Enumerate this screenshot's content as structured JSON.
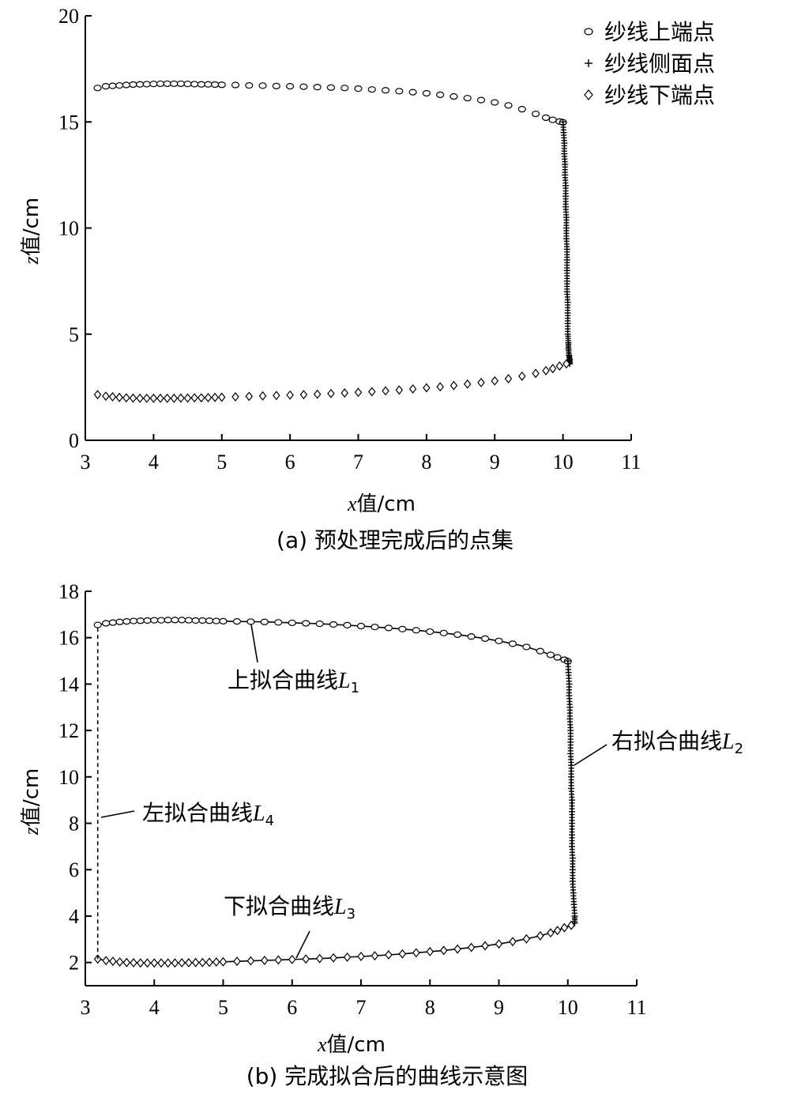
{
  "chart_data": [
    {
      "type": "scatter",
      "caption": "(a) 预处理完成后的点集",
      "xlabel_var": "x",
      "xlabel_rest": "值/cm",
      "ylabel_var": "z",
      "ylabel_rest": "值/cm",
      "xlim": [
        3,
        11
      ],
      "ylim": [
        0,
        20
      ],
      "xticks": [
        3,
        4,
        5,
        6,
        7,
        8,
        9,
        10,
        11
      ],
      "yticks": [
        0,
        5,
        10,
        15,
        20
      ],
      "legend_position": "top-right",
      "legend": [
        "纱线上端点",
        "纱线侧面点",
        "纱线下端点"
      ],
      "series": [
        {
          "name": "纱线上端点",
          "marker": "circle",
          "x": [
            3.18,
            3.3,
            3.4,
            3.5,
            3.6,
            3.7,
            3.8,
            3.9,
            4.0,
            4.1,
            4.2,
            4.3,
            4.4,
            4.5,
            4.6,
            4.7,
            4.8,
            4.9,
            5.0,
            5.2,
            5.4,
            5.6,
            5.8,
            6.0,
            6.2,
            6.4,
            6.6,
            6.8,
            7.0,
            7.2,
            7.4,
            7.6,
            7.8,
            8.0,
            8.2,
            8.4,
            8.6,
            8.8,
            9.0,
            9.2,
            9.4,
            9.6,
            9.75,
            9.85,
            9.95,
            10.0
          ],
          "y": [
            16.6,
            16.68,
            16.7,
            16.72,
            16.74,
            16.76,
            16.77,
            16.78,
            16.79,
            16.8,
            16.8,
            16.8,
            16.8,
            16.79,
            16.78,
            16.77,
            16.77,
            16.76,
            16.75,
            16.74,
            16.72,
            16.71,
            16.69,
            16.68,
            16.66,
            16.64,
            16.62,
            16.6,
            16.57,
            16.53,
            16.49,
            16.45,
            16.4,
            16.35,
            16.28,
            16.2,
            16.12,
            16.03,
            15.92,
            15.78,
            15.6,
            15.38,
            15.2,
            15.1,
            15.02,
            14.98
          ]
        },
        {
          "name": "纱线侧面点",
          "marker": "plus",
          "x": [
            10.0,
            10.01,
            10.02,
            10.02,
            10.03,
            10.03,
            10.04,
            10.04,
            10.04,
            10.05,
            10.05,
            10.05,
            10.06,
            10.06,
            10.06,
            10.06,
            10.06,
            10.07,
            10.07,
            10.07,
            10.07,
            10.08,
            10.08,
            10.09,
            10.1,
            10.1
          ],
          "y": [
            15.0,
            14.5,
            14.0,
            13.5,
            13.0,
            12.5,
            12.0,
            11.5,
            11.0,
            10.5,
            10.0,
            9.5,
            9.0,
            8.5,
            8.0,
            7.5,
            7.0,
            6.5,
            6.0,
            5.5,
            5.0,
            4.6,
            4.3,
            4.0,
            3.8,
            3.6
          ]
        },
        {
          "name": "纱线下端点",
          "marker": "diamond",
          "x": [
            3.18,
            3.3,
            3.4,
            3.5,
            3.6,
            3.7,
            3.8,
            3.9,
            4.0,
            4.1,
            4.2,
            4.3,
            4.4,
            4.5,
            4.6,
            4.7,
            4.8,
            4.9,
            5.0,
            5.2,
            5.4,
            5.6,
            5.8,
            6.0,
            6.2,
            6.4,
            6.6,
            6.8,
            7.0,
            7.2,
            7.4,
            7.6,
            7.8,
            8.0,
            8.2,
            8.4,
            8.6,
            8.8,
            9.0,
            9.2,
            9.4,
            9.6,
            9.75,
            9.85,
            9.95,
            10.05
          ],
          "y": [
            2.15,
            2.08,
            2.05,
            2.02,
            2.0,
            1.99,
            1.98,
            1.98,
            1.98,
            1.98,
            1.98,
            1.98,
            1.99,
            1.99,
            2.0,
            2.0,
            2.01,
            2.02,
            2.03,
            2.05,
            2.07,
            2.09,
            2.11,
            2.13,
            2.15,
            2.17,
            2.2,
            2.23,
            2.26,
            2.29,
            2.33,
            2.37,
            2.42,
            2.47,
            2.52,
            2.58,
            2.65,
            2.72,
            2.8,
            2.9,
            3.02,
            3.15,
            3.28,
            3.38,
            3.5,
            3.6
          ]
        }
      ]
    },
    {
      "type": "line",
      "caption": "(b) 完成拟合后的曲线示意图",
      "xlabel_var": "x",
      "xlabel_rest": "值/cm",
      "ylabel_var": "z",
      "ylabel_rest": "值/cm",
      "xlim": [
        3,
        11
      ],
      "ylim": [
        1,
        18
      ],
      "xticks": [
        3,
        4,
        5,
        6,
        7,
        8,
        9,
        10,
        11
      ],
      "yticks": [
        2,
        4,
        6,
        8,
        10,
        12,
        14,
        16,
        18
      ],
      "annotations": [
        {
          "prefix": "上拟合曲线",
          "letter": "L",
          "sub": "1"
        },
        {
          "prefix": "右拟合曲线",
          "letter": "L",
          "sub": "2"
        },
        {
          "prefix": "下拟合曲线",
          "letter": "L",
          "sub": "3"
        },
        {
          "prefix": "左拟合曲线",
          "letter": "L",
          "sub": "4"
        }
      ],
      "series": [
        {
          "name": "上拟合曲线L1",
          "marker": "circle",
          "x": [
            3.18,
            3.3,
            3.4,
            3.5,
            3.6,
            3.7,
            3.8,
            3.9,
            4.0,
            4.1,
            4.2,
            4.3,
            4.4,
            4.5,
            4.6,
            4.7,
            4.8,
            4.9,
            5.0,
            5.2,
            5.4,
            5.6,
            5.8,
            6.0,
            6.2,
            6.4,
            6.6,
            6.8,
            7.0,
            7.2,
            7.4,
            7.6,
            7.8,
            8.0,
            8.2,
            8.4,
            8.6,
            8.8,
            9.0,
            9.2,
            9.4,
            9.6,
            9.75,
            9.85,
            9.95,
            10.0
          ],
          "y": [
            16.55,
            16.62,
            16.65,
            16.68,
            16.7,
            16.72,
            16.73,
            16.74,
            16.75,
            16.75,
            16.76,
            16.76,
            16.76,
            16.75,
            16.74,
            16.74,
            16.73,
            16.72,
            16.71,
            16.7,
            16.69,
            16.68,
            16.66,
            16.64,
            16.62,
            16.6,
            16.57,
            16.54,
            16.5,
            16.46,
            16.42,
            16.37,
            16.32,
            16.26,
            16.2,
            16.13,
            16.05,
            15.96,
            15.86,
            15.74,
            15.6,
            15.42,
            15.26,
            15.15,
            15.05,
            14.98
          ]
        },
        {
          "name": "右拟合曲线L2",
          "marker": "plus",
          "x": [
            10.0,
            10.01,
            10.02,
            10.02,
            10.03,
            10.03,
            10.04,
            10.04,
            10.04,
            10.05,
            10.05,
            10.05,
            10.06,
            10.06,
            10.06,
            10.06,
            10.06,
            10.07,
            10.07,
            10.07,
            10.08,
            10.09,
            10.1,
            10.1
          ],
          "y": [
            15.0,
            14.5,
            14.0,
            13.5,
            13.0,
            12.5,
            12.0,
            11.5,
            11.0,
            10.5,
            10.0,
            9.5,
            9.0,
            8.5,
            8.0,
            7.5,
            7.0,
            6.5,
            6.0,
            5.5,
            5.0,
            4.5,
            4.0,
            3.7
          ]
        },
        {
          "name": "下拟合曲线L3",
          "marker": "diamond",
          "x": [
            3.18,
            3.3,
            3.4,
            3.5,
            3.6,
            3.7,
            3.8,
            3.9,
            4.0,
            4.1,
            4.2,
            4.3,
            4.4,
            4.5,
            4.6,
            4.7,
            4.8,
            4.9,
            5.0,
            5.2,
            5.4,
            5.6,
            5.8,
            6.0,
            6.2,
            6.4,
            6.6,
            6.8,
            7.0,
            7.2,
            7.4,
            7.6,
            7.8,
            8.0,
            8.2,
            8.4,
            8.6,
            8.8,
            9.0,
            9.2,
            9.4,
            9.6,
            9.75,
            9.85,
            9.95,
            10.05
          ],
          "y": [
            2.15,
            2.08,
            2.05,
            2.02,
            2.0,
            1.99,
            1.98,
            1.98,
            1.98,
            1.98,
            1.98,
            1.98,
            1.99,
            1.99,
            2.0,
            2.0,
            2.01,
            2.02,
            2.03,
            2.05,
            2.07,
            2.09,
            2.11,
            2.13,
            2.15,
            2.17,
            2.2,
            2.23,
            2.26,
            2.29,
            2.33,
            2.37,
            2.42,
            2.47,
            2.52,
            2.58,
            2.65,
            2.72,
            2.8,
            2.9,
            3.02,
            3.15,
            3.28,
            3.38,
            3.5,
            3.6
          ]
        },
        {
          "name": "左拟合曲线L4",
          "marker": "none",
          "dashed": true,
          "x": [
            3.18,
            3.18
          ],
          "y": [
            2.15,
            16.55
          ]
        }
      ]
    }
  ]
}
